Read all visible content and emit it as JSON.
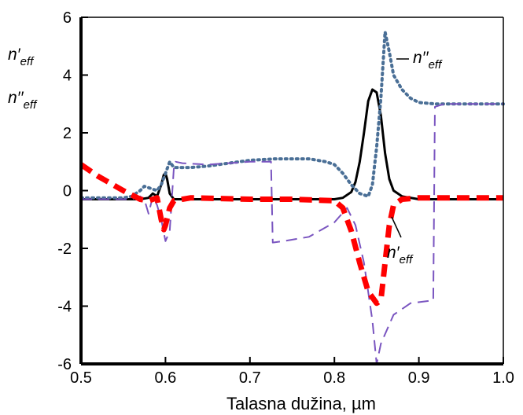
{
  "chart_data": {
    "type": "line",
    "xlabel": "Talasna dužina,  µm",
    "ylabel_lines": [
      {
        "base": "n′",
        "sub": "eff"
      },
      {
        "base": "n′′",
        "sub": "eff"
      }
    ],
    "xlim": [
      0.5,
      1.0
    ],
    "ylim": [
      -6,
      6
    ],
    "x_ticks": [
      0.5,
      0.6,
      0.7,
      0.8,
      0.9,
      1.0
    ],
    "x_tick_labels": [
      "0.5",
      "0.6",
      "0.7",
      "0.8",
      "0.9",
      "1.0"
    ],
    "y_ticks": [
      -6,
      -4,
      -2,
      0,
      2,
      4,
      6
    ],
    "y_tick_labels": [
      "-6",
      "-4",
      "-2",
      "0",
      "2",
      "4",
      "6"
    ],
    "grid": false,
    "series": [
      {
        "key": "solid_black",
        "color": "#000000",
        "style": "solid",
        "width": 3,
        "points": [
          [
            0.5,
            -0.3
          ],
          [
            0.55,
            -0.3
          ],
          [
            0.57,
            -0.3
          ],
          [
            0.58,
            -0.25
          ],
          [
            0.585,
            -0.1
          ],
          [
            0.59,
            -0.2
          ],
          [
            0.595,
            0.2
          ],
          [
            0.598,
            0.55
          ],
          [
            0.6,
            0.6
          ],
          [
            0.602,
            0.4
          ],
          [
            0.605,
            -0.1
          ],
          [
            0.61,
            -0.3
          ],
          [
            0.7,
            -0.3
          ],
          [
            0.8,
            -0.3
          ],
          [
            0.81,
            -0.25
          ],
          [
            0.82,
            -0.05
          ],
          [
            0.825,
            0.3
          ],
          [
            0.83,
            1.0
          ],
          [
            0.835,
            2.0
          ],
          [
            0.84,
            3.1
          ],
          [
            0.845,
            3.5
          ],
          [
            0.85,
            3.4
          ],
          [
            0.855,
            2.6
          ],
          [
            0.86,
            1.3
          ],
          [
            0.865,
            0.4
          ],
          [
            0.87,
            0.0
          ],
          [
            0.88,
            -0.2
          ],
          [
            0.9,
            -0.3
          ],
          [
            1.0,
            -0.3
          ]
        ]
      },
      {
        "key": "dotted_blue",
        "color": "#4a6f96",
        "style": "dotted",
        "width": 4,
        "points": [
          [
            0.5,
            -0.25
          ],
          [
            0.55,
            -0.25
          ],
          [
            0.56,
            -0.2
          ],
          [
            0.57,
            0.0
          ],
          [
            0.575,
            0.15
          ],
          [
            0.58,
            0.1
          ],
          [
            0.585,
            0.05
          ],
          [
            0.59,
            0.0
          ],
          [
            0.595,
            0.2
          ],
          [
            0.6,
            0.6
          ],
          [
            0.605,
            1.0
          ],
          [
            0.61,
            0.8
          ],
          [
            0.63,
            0.8
          ],
          [
            0.65,
            0.85
          ],
          [
            0.7,
            1.05
          ],
          [
            0.73,
            1.1
          ],
          [
            0.77,
            1.1
          ],
          [
            0.79,
            1.0
          ],
          [
            0.8,
            0.9
          ],
          [
            0.81,
            0.6
          ],
          [
            0.82,
            0.2
          ],
          [
            0.83,
            -0.1
          ],
          [
            0.84,
            -0.2
          ],
          [
            0.845,
            0.2
          ],
          [
            0.85,
            1.5
          ],
          [
            0.855,
            3.2
          ],
          [
            0.86,
            5.5
          ],
          [
            0.865,
            4.8
          ],
          [
            0.87,
            4.0
          ],
          [
            0.88,
            3.5
          ],
          [
            0.89,
            3.2
          ],
          [
            0.9,
            3.05
          ],
          [
            0.92,
            3.0
          ],
          [
            1.0,
            3.0
          ]
        ]
      },
      {
        "key": "dashed_purple",
        "color": "#7a55c0",
        "style": "dashed",
        "width": 2,
        "points": [
          [
            0.5,
            -0.3
          ],
          [
            0.56,
            -0.3
          ],
          [
            0.57,
            -0.2
          ],
          [
            0.575,
            -0.3
          ],
          [
            0.58,
            -0.8
          ],
          [
            0.585,
            -0.2
          ],
          [
            0.59,
            -0.5
          ],
          [
            0.595,
            -1.0
          ],
          [
            0.6,
            -1.75
          ],
          [
            0.605,
            -1.4
          ],
          [
            0.61,
            0.8
          ],
          [
            0.612,
            1.0
          ],
          [
            0.62,
            0.95
          ],
          [
            0.65,
            0.9
          ],
          [
            0.7,
            1.0
          ],
          [
            0.725,
            1.0
          ],
          [
            0.727,
            -1.8
          ],
          [
            0.74,
            -1.75
          ],
          [
            0.77,
            -1.6
          ],
          [
            0.8,
            -1.1
          ],
          [
            0.815,
            -0.6
          ],
          [
            0.825,
            -1.2
          ],
          [
            0.835,
            -2.5
          ],
          [
            0.845,
            -4.5
          ],
          [
            0.85,
            -6.0
          ],
          [
            0.855,
            -5.3
          ],
          [
            0.87,
            -4.3
          ],
          [
            0.89,
            -3.9
          ],
          [
            0.917,
            -3.8
          ],
          [
            0.919,
            2.9
          ],
          [
            0.93,
            3.0
          ],
          [
            1.0,
            3.0
          ]
        ]
      },
      {
        "key": "dashed_red",
        "color": "#ff0000",
        "style": "dashed",
        "width": 7,
        "points": [
          [
            0.5,
            0.9
          ],
          [
            0.52,
            0.5
          ],
          [
            0.55,
            0.0
          ],
          [
            0.57,
            -0.3
          ],
          [
            0.58,
            -0.35
          ],
          [
            0.59,
            -0.25
          ],
          [
            0.595,
            -1.0
          ],
          [
            0.598,
            -1.35
          ],
          [
            0.6,
            -1.2
          ],
          [
            0.605,
            -0.6
          ],
          [
            0.61,
            -0.35
          ],
          [
            0.63,
            -0.25
          ],
          [
            0.7,
            -0.3
          ],
          [
            0.75,
            -0.3
          ],
          [
            0.8,
            -0.35
          ],
          [
            0.81,
            -0.6
          ],
          [
            0.82,
            -1.4
          ],
          [
            0.83,
            -2.5
          ],
          [
            0.84,
            -3.5
          ],
          [
            0.85,
            -3.9
          ],
          [
            0.855,
            -3.8
          ],
          [
            0.86,
            -2.5
          ],
          [
            0.865,
            -1.2
          ],
          [
            0.87,
            -0.5
          ],
          [
            0.88,
            -0.3
          ],
          [
            0.9,
            -0.25
          ],
          [
            1.0,
            -0.25
          ]
        ]
      }
    ],
    "annotations": [
      {
        "base": "n′′",
        "sub": "eff",
        "target_series": "dotted_blue"
      },
      {
        "base": "n′",
        "sub": "eff",
        "target_series": "dashed_red"
      }
    ]
  }
}
